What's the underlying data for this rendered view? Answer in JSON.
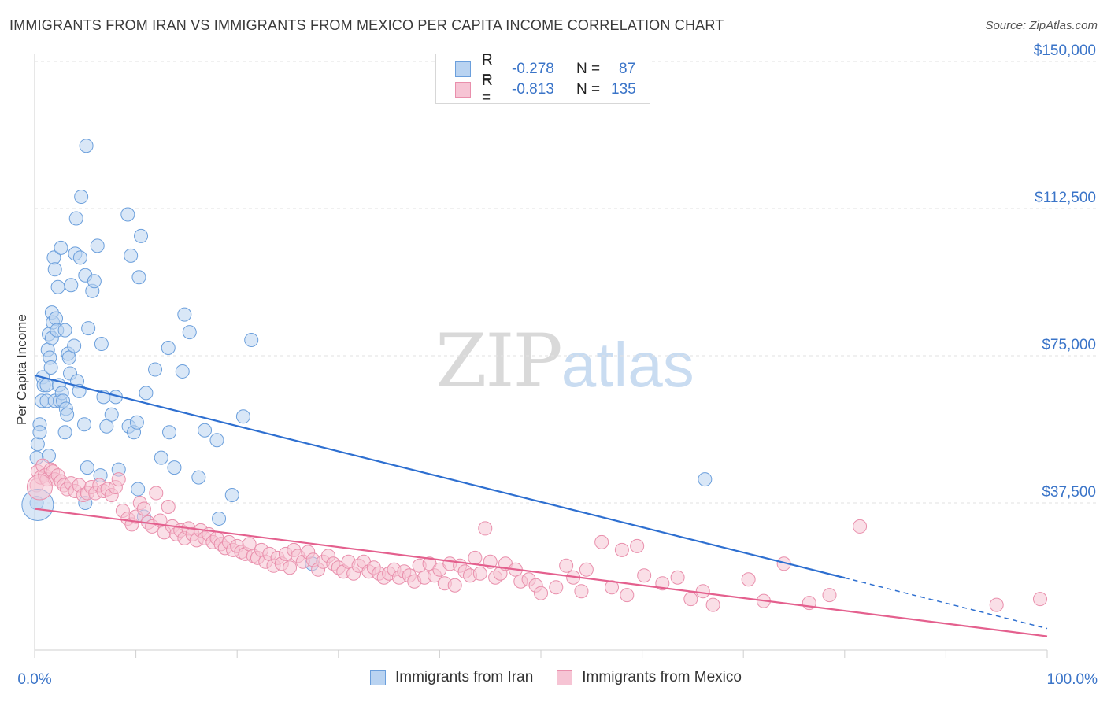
{
  "header": {
    "title": "IMMIGRANTS FROM IRAN VS IMMIGRANTS FROM MEXICO PER CAPITA INCOME CORRELATION CHART",
    "source": "Source: ZipAtlas.com"
  },
  "watermark": {
    "zip": "ZIP",
    "atlas": "atlas"
  },
  "colors": {
    "iran_fill": "#b9d3f1",
    "iran_stroke": "#6b9fdc",
    "iran_line": "#2e6fd0",
    "mexico_fill": "#f6c4d4",
    "mexico_stroke": "#e98fac",
    "mexico_line": "#e4608e",
    "accent_text": "#3a74c8"
  },
  "legend_top": {
    "rows": [
      {
        "series": "iran",
        "r_label": "R =",
        "r_value": "-0.278",
        "n_label": "N =",
        "n_value": "87"
      },
      {
        "series": "mexico",
        "r_label": "R =",
        "r_value": "-0.813",
        "n_label": "N =",
        "n_value": "135"
      }
    ]
  },
  "legend_bottom": {
    "iran_label": "Immigrants from Iran",
    "mexico_label": "Immigrants from Mexico"
  },
  "chart_data": {
    "type": "scatter",
    "title": "IMMIGRANTS FROM IRAN VS IMMIGRANTS FROM MEXICO PER CAPITA INCOME CORRELATION CHART",
    "xlabel": "",
    "ylabel": "Per Capita Income",
    "xlim": [
      0,
      100
    ],
    "ylim": [
      0,
      150000
    ],
    "x_tick_labels": [
      "0.0%",
      "100.0%"
    ],
    "y_ticks": [
      37500,
      75000,
      112500,
      150000
    ],
    "y_tick_labels": [
      "$37,500",
      "$75,000",
      "$112,500",
      "$150,000"
    ],
    "grid": true,
    "series": [
      {
        "name": "Immigrants from Iran",
        "key": "iran",
        "trend": {
          "x": [
            0,
            80
          ],
          "y": [
            70000,
            18400
          ],
          "dashed_extension": {
            "x": [
              80,
              100
            ],
            "y": [
              18400,
              5500
            ]
          }
        },
        "points": [
          [
            0.2,
            37500
          ],
          [
            0.2,
            49000
          ],
          [
            0.3,
            52500
          ],
          [
            0.5,
            57500
          ],
          [
            0.5,
            55500
          ],
          [
            0.7,
            63500
          ],
          [
            0.8,
            69500
          ],
          [
            0.9,
            67500
          ],
          [
            1.2,
            63500
          ],
          [
            1.2,
            67500
          ],
          [
            1.3,
            76500
          ],
          [
            1.4,
            80500
          ],
          [
            1.4,
            49500
          ],
          [
            1.5,
            74500
          ],
          [
            1.6,
            72000
          ],
          [
            1.7,
            79500
          ],
          [
            1.7,
            86000
          ],
          [
            1.8,
            83500
          ],
          [
            1.9,
            100000
          ],
          [
            2.0,
            63500
          ],
          [
            2.0,
            97000
          ],
          [
            2.1,
            84500
          ],
          [
            2.2,
            81500
          ],
          [
            2.3,
            92500
          ],
          [
            2.4,
            67500
          ],
          [
            2.5,
            63500
          ],
          [
            2.6,
            102500
          ],
          [
            2.7,
            65500
          ],
          [
            2.8,
            63500
          ],
          [
            3.0,
            81500
          ],
          [
            3.0,
            55500
          ],
          [
            3.1,
            61500
          ],
          [
            3.2,
            60000
          ],
          [
            3.3,
            75500
          ],
          [
            3.4,
            74500
          ],
          [
            3.5,
            70500
          ],
          [
            3.6,
            93000
          ],
          [
            3.9,
            77500
          ],
          [
            4.0,
            101000
          ],
          [
            4.1,
            110000
          ],
          [
            4.2,
            68500
          ],
          [
            4.4,
            66000
          ],
          [
            4.5,
            100000
          ],
          [
            4.6,
            115500
          ],
          [
            4.9,
            57500
          ],
          [
            5.0,
            95500
          ],
          [
            5.1,
            128500
          ],
          [
            5.2,
            46500
          ],
          [
            5.3,
            82000
          ],
          [
            5.7,
            91500
          ],
          [
            5.9,
            94000
          ],
          [
            6.2,
            103000
          ],
          [
            6.6,
            78000
          ],
          [
            6.8,
            64500
          ],
          [
            7.1,
            57000
          ],
          [
            7.6,
            60000
          ],
          [
            8.0,
            64500
          ],
          [
            8.3,
            46000
          ],
          [
            9.2,
            111000
          ],
          [
            9.3,
            57000
          ],
          [
            9.5,
            100500
          ],
          [
            9.8,
            55500
          ],
          [
            10.1,
            58000
          ],
          [
            10.3,
            95000
          ],
          [
            10.5,
            105500
          ],
          [
            11.0,
            65500
          ],
          [
            11.9,
            71500
          ],
          [
            12.5,
            49000
          ],
          [
            13.2,
            77000
          ],
          [
            13.3,
            55500
          ],
          [
            13.8,
            46500
          ],
          [
            14.6,
            71000
          ],
          [
            14.8,
            85500
          ],
          [
            15.3,
            81000
          ],
          [
            16.2,
            44000
          ],
          [
            16.8,
            56000
          ],
          [
            18.0,
            53500
          ],
          [
            19.5,
            39500
          ],
          [
            20.6,
            59500
          ],
          [
            21.4,
            79000
          ],
          [
            18.2,
            33500
          ],
          [
            27.4,
            22000
          ],
          [
            10.8,
            34000
          ],
          [
            10.2,
            41000
          ],
          [
            6.5,
            44500
          ],
          [
            5.0,
            37500
          ],
          [
            66.2,
            43500
          ]
        ]
      },
      {
        "name": "Immigrants from Mexico",
        "key": "mexico",
        "trend": {
          "x": [
            0,
            100
          ],
          "y": [
            36000,
            3500
          ]
        },
        "points": [
          [
            0.2,
            42000
          ],
          [
            0.3,
            45500
          ],
          [
            0.6,
            44000
          ],
          [
            0.8,
            47000
          ],
          [
            1.0,
            44500
          ],
          [
            1.2,
            43500
          ],
          [
            1.6,
            46000
          ],
          [
            1.8,
            45500
          ],
          [
            2.0,
            43500
          ],
          [
            2.3,
            44500
          ],
          [
            2.6,
            43000
          ],
          [
            2.9,
            42000
          ],
          [
            3.2,
            41000
          ],
          [
            3.6,
            42500
          ],
          [
            4.0,
            40500
          ],
          [
            4.4,
            42000
          ],
          [
            4.8,
            39500
          ],
          [
            5.2,
            40000
          ],
          [
            5.6,
            41500
          ],
          [
            6.0,
            40000
          ],
          [
            6.4,
            42000
          ],
          [
            6.8,
            40500
          ],
          [
            7.2,
            41000
          ],
          [
            7.6,
            39500
          ],
          [
            8.0,
            41500
          ],
          [
            8.3,
            43500
          ],
          [
            8.7,
            35500
          ],
          [
            9.2,
            33500
          ],
          [
            9.6,
            32000
          ],
          [
            10.0,
            34000
          ],
          [
            10.4,
            37500
          ],
          [
            10.8,
            36000
          ],
          [
            11.2,
            32500
          ],
          [
            11.6,
            31500
          ],
          [
            12.0,
            40000
          ],
          [
            12.4,
            33000
          ],
          [
            12.8,
            30000
          ],
          [
            13.2,
            36500
          ],
          [
            13.6,
            31500
          ],
          [
            14.0,
            29500
          ],
          [
            14.4,
            30500
          ],
          [
            14.8,
            28500
          ],
          [
            15.2,
            31000
          ],
          [
            15.6,
            29500
          ],
          [
            16.0,
            28000
          ],
          [
            16.4,
            30500
          ],
          [
            16.8,
            28500
          ],
          [
            17.2,
            29500
          ],
          [
            17.6,
            27500
          ],
          [
            18.0,
            28500
          ],
          [
            18.4,
            27000
          ],
          [
            18.8,
            26000
          ],
          [
            19.2,
            27500
          ],
          [
            19.6,
            25500
          ],
          [
            20.0,
            26500
          ],
          [
            20.4,
            25000
          ],
          [
            20.8,
            24500
          ],
          [
            21.2,
            27000
          ],
          [
            21.6,
            24000
          ],
          [
            22.0,
            23500
          ],
          [
            22.4,
            25500
          ],
          [
            22.8,
            22500
          ],
          [
            23.2,
            24500
          ],
          [
            23.6,
            21500
          ],
          [
            24.0,
            23500
          ],
          [
            24.4,
            22000
          ],
          [
            24.8,
            24500
          ],
          [
            25.2,
            21000
          ],
          [
            25.6,
            25500
          ],
          [
            26.0,
            24000
          ],
          [
            26.5,
            22500
          ],
          [
            27.0,
            25000
          ],
          [
            27.5,
            23000
          ],
          [
            28.0,
            20500
          ],
          [
            28.5,
            22500
          ],
          [
            29.0,
            24000
          ],
          [
            29.5,
            22000
          ],
          [
            30.0,
            21000
          ],
          [
            30.5,
            20000
          ],
          [
            31.0,
            22500
          ],
          [
            31.5,
            19500
          ],
          [
            32.0,
            21500
          ],
          [
            32.5,
            22500
          ],
          [
            33.0,
            20000
          ],
          [
            33.5,
            21000
          ],
          [
            34.0,
            19500
          ],
          [
            34.5,
            18500
          ],
          [
            35.0,
            19500
          ],
          [
            35.5,
            20500
          ],
          [
            36.0,
            18500
          ],
          [
            36.5,
            20000
          ],
          [
            37.0,
            19000
          ],
          [
            37.5,
            17500
          ],
          [
            38.0,
            21500
          ],
          [
            38.5,
            18500
          ],
          [
            39.0,
            22000
          ],
          [
            39.5,
            19000
          ],
          [
            40.0,
            20500
          ],
          [
            40.5,
            17000
          ],
          [
            41.0,
            22000
          ],
          [
            41.5,
            16500
          ],
          [
            42.0,
            21500
          ],
          [
            42.5,
            20000
          ],
          [
            43.0,
            19000
          ],
          [
            43.5,
            23500
          ],
          [
            44.0,
            19500
          ],
          [
            44.5,
            31000
          ],
          [
            45.0,
            22500
          ],
          [
            45.5,
            18500
          ],
          [
            46.0,
            19500
          ],
          [
            46.5,
            22000
          ],
          [
            47.5,
            20500
          ],
          [
            48.0,
            17500
          ],
          [
            48.8,
            18000
          ],
          [
            49.5,
            16500
          ],
          [
            50.0,
            14500
          ],
          [
            51.5,
            16000
          ],
          [
            52.5,
            21500
          ],
          [
            53.2,
            18500
          ],
          [
            54.0,
            15000
          ],
          [
            54.5,
            20500
          ],
          [
            56.0,
            27500
          ],
          [
            57.0,
            16000
          ],
          [
            58.0,
            25500
          ],
          [
            58.5,
            14000
          ],
          [
            59.5,
            26500
          ],
          [
            60.2,
            19000
          ],
          [
            62.0,
            17000
          ],
          [
            63.5,
            18500
          ],
          [
            64.8,
            13000
          ],
          [
            66.0,
            15000
          ],
          [
            67.0,
            11500
          ],
          [
            70.5,
            18000
          ],
          [
            72.0,
            12500
          ],
          [
            74.0,
            22000
          ],
          [
            76.5,
            12000
          ],
          [
            78.5,
            14000
          ],
          [
            81.5,
            31500
          ],
          [
            95.0,
            11500
          ],
          [
            99.3,
            13000
          ]
        ]
      }
    ]
  }
}
